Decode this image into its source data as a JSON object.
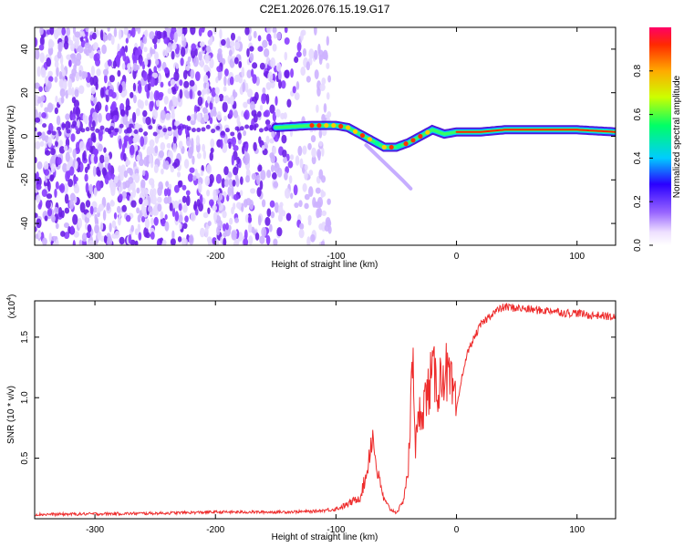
{
  "figure_title": "C2E1.2026.076.15.19.G17",
  "chart_data": [
    {
      "type": "heatmap",
      "name": "radio occultation spectrogram",
      "xlabel": "Height of straight line (km)",
      "ylabel": "Frequency (Hz)",
      "xlim": [
        -350,
        132
      ],
      "ylim": [
        -50,
        50
      ],
      "xticks": [
        -300,
        -200,
        -100,
        0,
        100
      ],
      "yticks": [
        -40,
        -20,
        0,
        20,
        40
      ],
      "colorbar": {
        "label": "Normalized spectral amplitude",
        "range": [
          0,
          1
        ],
        "ticks": [
          0.0,
          0.2,
          0.4,
          0.6,
          0.8
        ],
        "tick_labels": [
          "0.0",
          "0.2",
          "0.4",
          "0.6",
          "0.8"
        ]
      },
      "main_signal_ridge": {
        "height_km": [
          -150,
          -120,
          -100,
          -90,
          -80,
          -70,
          -60,
          -50,
          -40,
          -30,
          -20,
          -10,
          0,
          20,
          40,
          60,
          80,
          100,
          132
        ],
        "frequency_hz": [
          4,
          5,
          5,
          4,
          1,
          -2,
          -5,
          -5,
          -3,
          0,
          3,
          1,
          2,
          2,
          3,
          3,
          3,
          3,
          2
        ]
      },
      "noise_region_km": [
        -350,
        -115
      ]
    },
    {
      "type": "line",
      "name": "SNR profile",
      "xlabel": "Height of straight line (km)",
      "ylabel": "SNR (10 * v/v)",
      "y_multiplier": "(x10",
      "y_exponent": "4",
      "xlim": [
        -350,
        132
      ],
      "ylim": [
        0,
        18000
      ],
      "xticks": [
        -300,
        -200,
        -100,
        0,
        100
      ],
      "yticks": [
        5000,
        10000,
        15000
      ],
      "ytick_labels": [
        "0.5",
        "1.0",
        "1.5"
      ],
      "line_color": "#ee2c2c",
      "x": [
        -350,
        -300,
        -250,
        -200,
        -150,
        -120,
        -100,
        -90,
        -80,
        -75,
        -70,
        -65,
        -60,
        -55,
        -50,
        -45,
        -40,
        -36,
        -34,
        -30,
        -25,
        -20,
        -15,
        -10,
        -5,
        0,
        5,
        10,
        15,
        20,
        30,
        40,
        50,
        60,
        70,
        80,
        90,
        100,
        110,
        120,
        132
      ],
      "y": [
        350,
        400,
        450,
        550,
        550,
        600,
        800,
        1200,
        1800,
        3500,
        7000,
        3500,
        1500,
        800,
        500,
        1200,
        4000,
        14000,
        6000,
        9000,
        10000,
        12000,
        11000,
        12500,
        11000,
        9000,
        12000,
        14000,
        15000,
        16000,
        17000,
        17500,
        17400,
        17300,
        17200,
        17200,
        17000,
        17000,
        16800,
        16800,
        16600
      ]
    }
  ]
}
